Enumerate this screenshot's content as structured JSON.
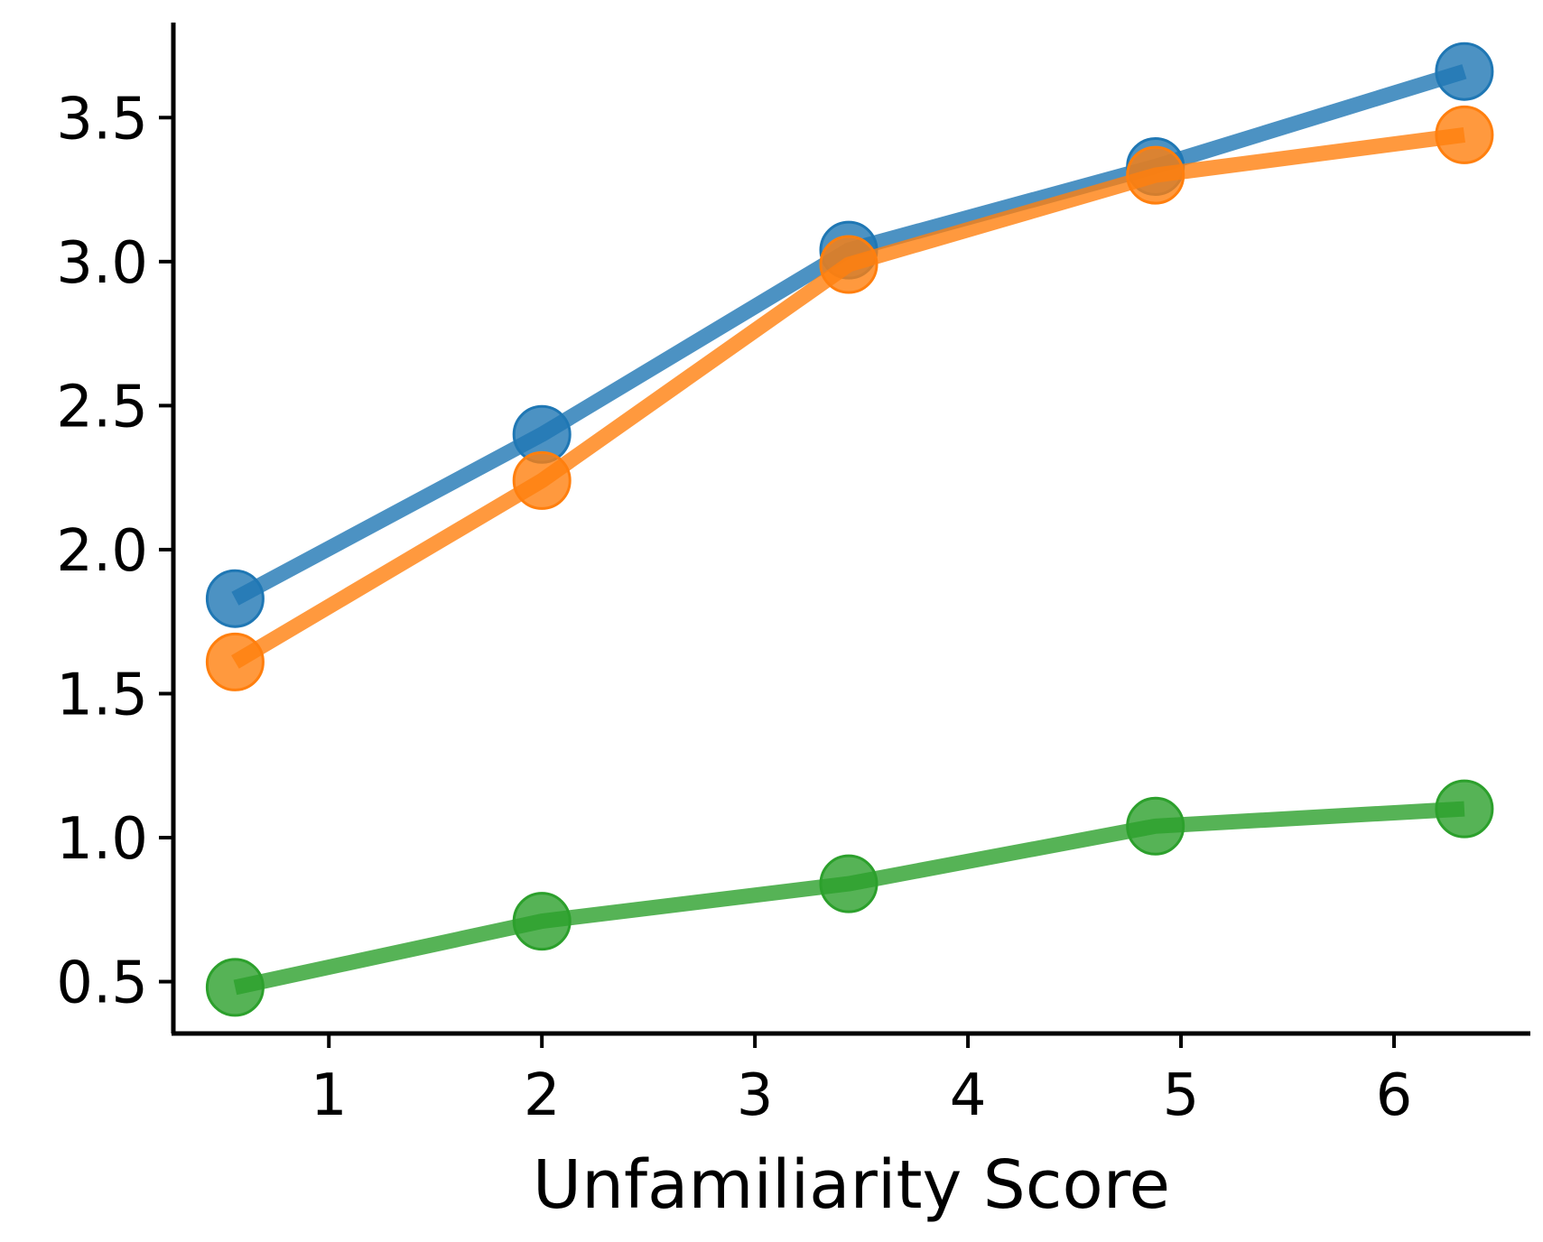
{
  "chart_data": {
    "type": "line",
    "title": "",
    "xlabel": "Unfamiliarity Score",
    "ylabel": "",
    "xlim": [
      0.27,
      6.64
    ],
    "ylim": [
      0.32,
      3.83
    ],
    "xticks": [
      1,
      2,
      3,
      4,
      5,
      6
    ],
    "xtick_labels": [
      "1",
      "2",
      "3",
      "4",
      "5",
      "6"
    ],
    "yticks": [
      0.5,
      1.0,
      1.5,
      2.0,
      2.5,
      3.0,
      3.5
    ],
    "ytick_labels": [
      "0.5",
      "1.0",
      "1.5",
      "2.0",
      "2.5",
      "3.0",
      "3.5"
    ],
    "grid": false,
    "legend": "none",
    "x": [
      0.56,
      2.0,
      3.44,
      4.88,
      6.33
    ],
    "series": [
      {
        "color": "#1f77b4",
        "values": [
          1.83,
          2.4,
          3.04,
          3.33,
          3.66
        ]
      },
      {
        "color": "#ff7f0e",
        "values": [
          1.61,
          2.24,
          2.99,
          3.3,
          3.44
        ]
      },
      {
        "color": "#2ca02c",
        "values": [
          0.48,
          0.71,
          0.84,
          1.04,
          1.1
        ]
      }
    ]
  }
}
